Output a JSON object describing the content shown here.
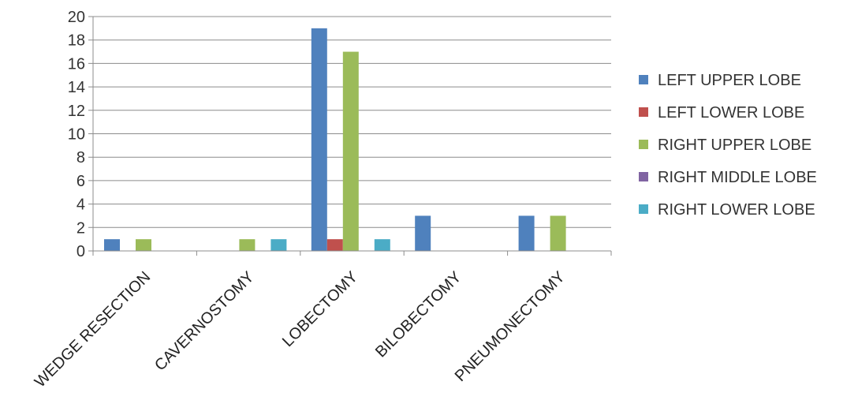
{
  "chart_data": {
    "type": "bar",
    "categories": [
      "WEDGE RESECTION",
      "CAVERNOSTOMY",
      "LOBECTOMY",
      "BILOBECTOMY",
      "PNEUMONECTOMY"
    ],
    "series": [
      {
        "name": "LEFT UPPER LOBE",
        "color": "#4f81bd",
        "values": [
          1,
          0,
          19,
          3,
          3
        ]
      },
      {
        "name": "LEFT LOWER LOBE",
        "color": "#c0504d",
        "values": [
          0,
          0,
          1,
          0,
          0
        ]
      },
      {
        "name": "RIGHT UPPER LOBE",
        "color": "#9bbb59",
        "values": [
          1,
          1,
          17,
          0,
          3
        ]
      },
      {
        "name": "RIGHT MIDDLE LOBE",
        "color": "#8064a2",
        "values": [
          0,
          0,
          0,
          0,
          0
        ]
      },
      {
        "name": "RIGHT LOWER LOBE",
        "color": "#4bacc6",
        "values": [
          0,
          1,
          1,
          0,
          0
        ]
      }
    ],
    "ylim": [
      0,
      20
    ],
    "yticks": [
      0,
      2,
      4,
      6,
      8,
      10,
      12,
      14,
      16,
      18,
      20
    ],
    "grid": true,
    "legend_position": "right",
    "title": "",
    "xlabel": "",
    "ylabel": ""
  }
}
